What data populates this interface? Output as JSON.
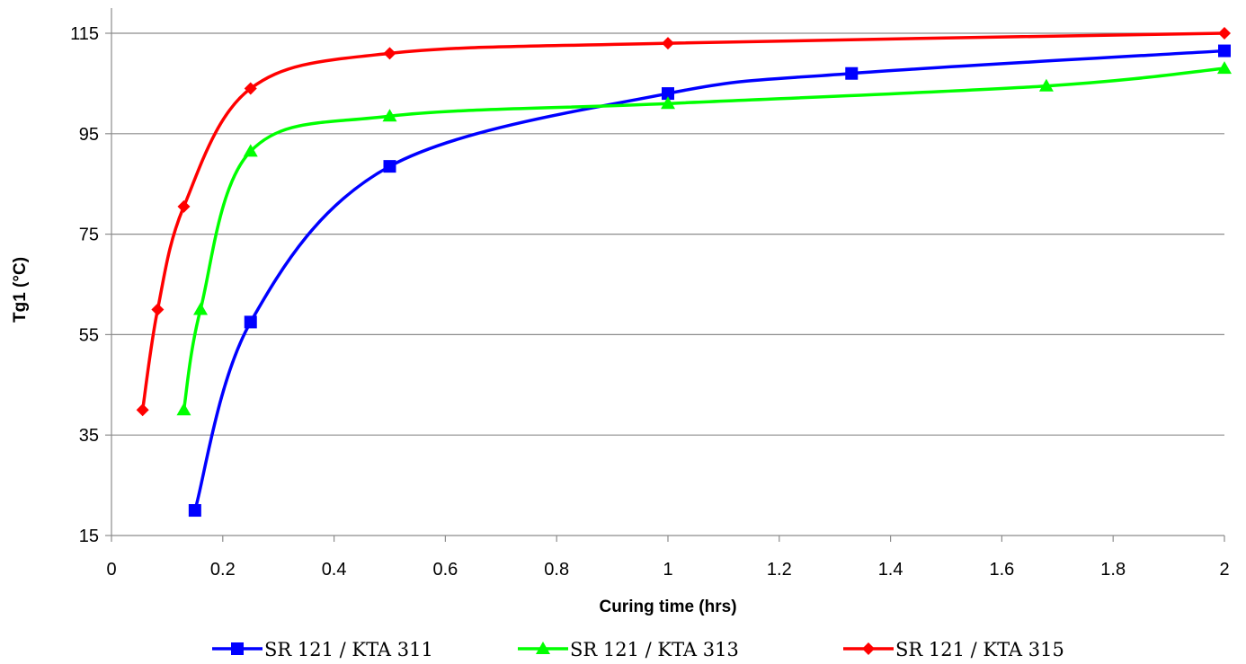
{
  "chart_data": {
    "type": "line",
    "title": "",
    "xlabel": "Curing time (hrs)",
    "ylabel": "Tg1 (°C)",
    "xlim": [
      0,
      2
    ],
    "ylim": [
      15,
      115
    ],
    "xticks": [
      "0",
      "0.2",
      "0.4",
      "0.6",
      "0.8",
      "1",
      "1.2",
      "1.4",
      "1.6",
      "1.8",
      "2"
    ],
    "yticks": [
      "15",
      "35",
      "55",
      "75",
      "95",
      "115"
    ],
    "grid": "horizontal",
    "smooth": true,
    "legend_position": "bottom",
    "series": [
      {
        "name": "SR 121 / KTA 311",
        "color": "#0000ff",
        "marker": "square",
        "points": [
          [
            0.15,
            20
          ],
          [
            0.25,
            57.5
          ],
          [
            0.5,
            88.5
          ],
          [
            1.0,
            103
          ],
          [
            1.33,
            107
          ],
          [
            2.0,
            111.5
          ]
        ]
      },
      {
        "name": "SR 121 / KTA 313",
        "color": "#00ff00",
        "marker": "triangle",
        "points": [
          [
            0.13,
            40
          ],
          [
            0.16,
            60
          ],
          [
            0.25,
            91.5
          ],
          [
            0.5,
            98.5
          ],
          [
            1.0,
            101
          ],
          [
            1.68,
            104.5
          ],
          [
            2.0,
            108
          ]
        ]
      },
      {
        "name": "SR 121 / KTA 315",
        "color": "#ff0000",
        "marker": "diamond",
        "points": [
          [
            0.056,
            40
          ],
          [
            0.083,
            60
          ],
          [
            0.13,
            80.5
          ],
          [
            0.25,
            104
          ],
          [
            0.5,
            111
          ],
          [
            1.0,
            113
          ],
          [
            2.0,
            115
          ]
        ]
      }
    ]
  }
}
